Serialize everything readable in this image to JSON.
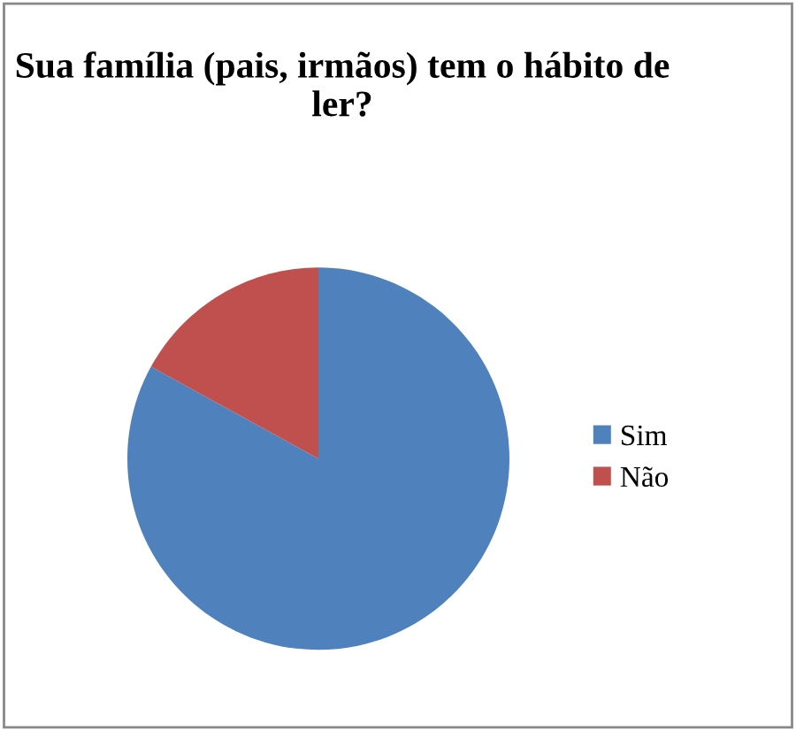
{
  "chart_data": {
    "type": "pie",
    "title": "Sua família (pais, irmãos) tem o hábito de ler?",
    "categories": [
      "Sim",
      "Não"
    ],
    "values": [
      83,
      17
    ],
    "colors": [
      "#4f81bd",
      "#c0504d"
    ],
    "legend": "right"
  }
}
